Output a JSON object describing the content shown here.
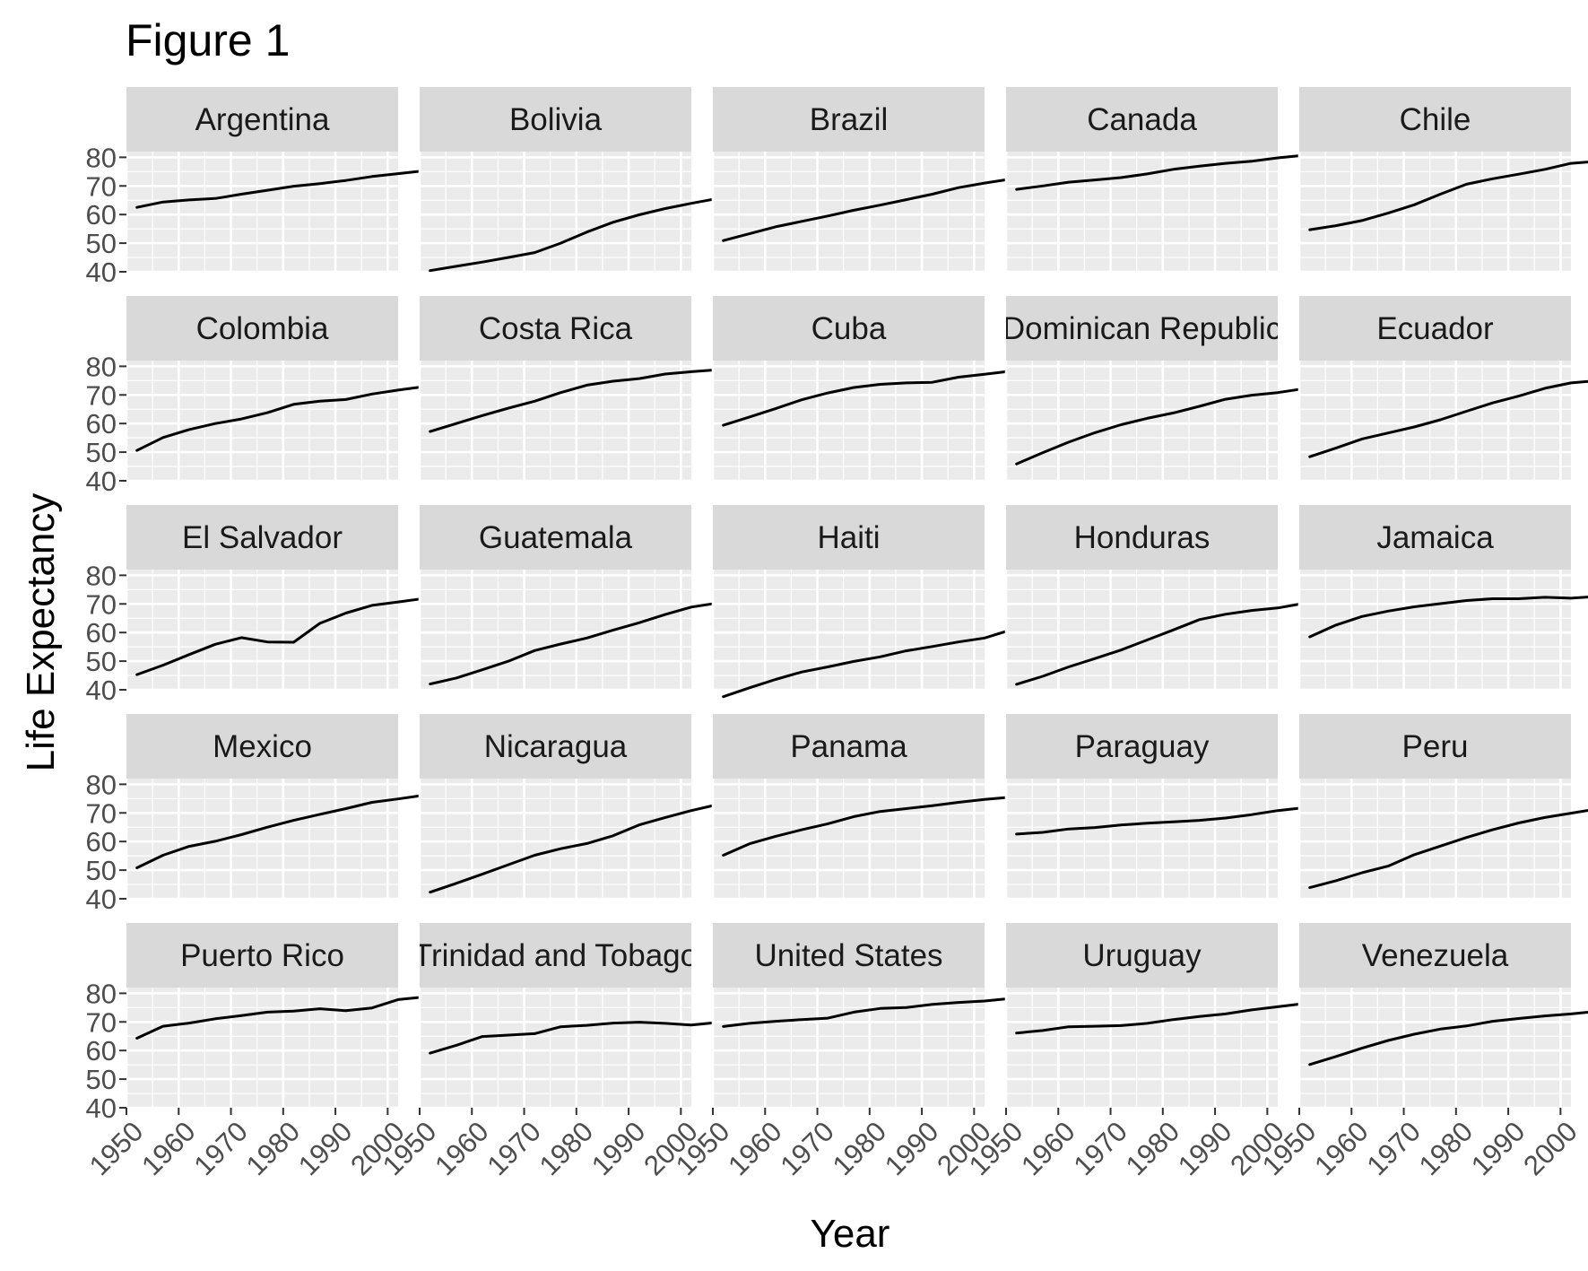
{
  "chart_data": {
    "type": "line",
    "title": "Figure 1",
    "xlabel": "Year",
    "ylabel": "Life Expectancy",
    "xlim": [
      1950,
      2002
    ],
    "ylim": [
      40,
      82
    ],
    "x_ticks": [
      1950,
      1960,
      1970,
      1980,
      1990,
      2000
    ],
    "x_tick_labels": [
      "1950",
      "1960",
      "1970",
      "1980",
      "1990",
      "2000"
    ],
    "y_ticks": [
      40,
      50,
      60,
      70,
      80
    ],
    "y_tick_labels": [
      "40",
      "50",
      "60",
      "70",
      "80"
    ],
    "grid": true,
    "layout": "facet grid 5 x 5",
    "x": [
      1952,
      1957,
      1962,
      1967,
      1972,
      1977,
      1982,
      1987,
      1992,
      1997,
      2002,
      2007
    ],
    "panels": [
      {
        "name": "Argentina",
        "values": [
          62.5,
          64.4,
          65.1,
          65.6,
          67.1,
          68.5,
          69.9,
          70.8,
          71.9,
          73.3,
          74.3,
          75.3
        ]
      },
      {
        "name": "Bolivia",
        "values": [
          40.4,
          41.9,
          43.4,
          45.0,
          46.7,
          50.0,
          53.9,
          57.3,
          59.9,
          62.1,
          63.9,
          65.6
        ]
      },
      {
        "name": "Brazil",
        "values": [
          50.9,
          53.3,
          55.7,
          57.6,
          59.5,
          61.5,
          63.3,
          65.2,
          67.1,
          69.4,
          71.0,
          72.4
        ]
      },
      {
        "name": "Canada",
        "values": [
          68.8,
          70.0,
          71.3,
          72.1,
          72.9,
          74.2,
          75.8,
          76.9,
          77.9,
          78.6,
          79.8,
          80.7
        ]
      },
      {
        "name": "Chile",
        "values": [
          54.7,
          56.1,
          57.9,
          60.5,
          63.4,
          67.1,
          70.6,
          72.5,
          74.1,
          75.8,
          77.9,
          78.6
        ]
      },
      {
        "name": "Colombia",
        "values": [
          50.6,
          55.1,
          57.9,
          60.0,
          61.6,
          63.8,
          66.7,
          67.8,
          68.4,
          70.3,
          71.7,
          72.9
        ]
      },
      {
        "name": "Costa Rica",
        "values": [
          57.2,
          60.0,
          62.8,
          65.4,
          67.8,
          70.8,
          73.4,
          74.8,
          75.7,
          77.3,
          78.1,
          78.8
        ]
      },
      {
        "name": "Cuba",
        "values": [
          59.4,
          62.3,
          65.2,
          68.3,
          70.7,
          72.6,
          73.7,
          74.2,
          74.4,
          76.2,
          77.2,
          78.3
        ]
      },
      {
        "name": "Dominican Republic",
        "values": [
          45.9,
          49.8,
          53.5,
          56.8,
          59.6,
          61.8,
          63.7,
          66.0,
          68.5,
          69.9,
          70.8,
          72.2
        ]
      },
      {
        "name": "Ecuador",
        "values": [
          48.4,
          51.4,
          54.6,
          56.7,
          58.8,
          61.3,
          64.3,
          67.2,
          69.6,
          72.3,
          74.2,
          75.0
        ]
      },
      {
        "name": "El Salvador",
        "values": [
          45.3,
          48.6,
          52.3,
          55.9,
          58.2,
          56.7,
          56.6,
          63.2,
          66.8,
          69.5,
          70.7,
          71.9
        ]
      },
      {
        "name": "Guatemala",
        "values": [
          42.0,
          44.1,
          47.0,
          50.0,
          53.7,
          56.0,
          58.1,
          60.8,
          63.4,
          66.3,
          68.9,
          70.3
        ]
      },
      {
        "name": "Haiti",
        "values": [
          37.6,
          40.7,
          43.6,
          46.2,
          48.0,
          49.9,
          51.5,
          53.6,
          55.1,
          56.7,
          58.1,
          60.9
        ]
      },
      {
        "name": "Honduras",
        "values": [
          41.9,
          44.7,
          48.0,
          50.9,
          53.9,
          57.4,
          60.9,
          64.5,
          66.4,
          67.7,
          68.6,
          70.2
        ]
      },
      {
        "name": "Jamaica",
        "values": [
          58.5,
          62.6,
          65.6,
          67.5,
          69.0,
          70.1,
          71.2,
          71.8,
          71.8,
          72.3,
          72.0,
          72.6
        ]
      },
      {
        "name": "Mexico",
        "values": [
          50.8,
          55.2,
          58.3,
          60.1,
          62.4,
          65.0,
          67.4,
          69.5,
          71.5,
          73.7,
          74.9,
          76.2
        ]
      },
      {
        "name": "Nicaragua",
        "values": [
          42.3,
          45.4,
          48.6,
          51.9,
          55.2,
          57.5,
          59.3,
          62.0,
          65.8,
          68.4,
          70.8,
          72.9
        ]
      },
      {
        "name": "Panama",
        "values": [
          55.2,
          59.2,
          61.8,
          64.1,
          66.2,
          68.7,
          70.5,
          71.5,
          72.5,
          73.7,
          74.7,
          75.5
        ]
      },
      {
        "name": "Paraguay",
        "values": [
          62.6,
          63.2,
          64.4,
          64.9,
          65.8,
          66.4,
          66.9,
          67.4,
          68.2,
          69.4,
          70.8,
          71.8
        ]
      },
      {
        "name": "Peru",
        "values": [
          43.9,
          46.3,
          49.1,
          51.4,
          55.4,
          58.4,
          61.4,
          64.1,
          66.5,
          68.4,
          69.9,
          71.4
        ]
      },
      {
        "name": "Puerto Rico",
        "values": [
          64.3,
          68.5,
          69.6,
          71.1,
          72.2,
          73.4,
          73.8,
          74.6,
          73.9,
          74.9,
          77.8,
          78.7
        ]
      },
      {
        "name": "Trinidad and Tobago",
        "values": [
          59.1,
          61.8,
          64.9,
          65.4,
          65.9,
          68.3,
          68.8,
          69.6,
          69.9,
          69.5,
          68.9,
          69.8
        ]
      },
      {
        "name": "United States",
        "values": [
          68.4,
          69.5,
          70.2,
          70.8,
          71.3,
          73.4,
          74.7,
          75.0,
          76.1,
          76.8,
          77.3,
          78.2
        ]
      },
      {
        "name": "Uruguay",
        "values": [
          66.1,
          67.0,
          68.3,
          68.5,
          68.7,
          69.5,
          70.8,
          71.9,
          72.8,
          74.2,
          75.3,
          76.4
        ]
      },
      {
        "name": "Venezuela",
        "values": [
          55.1,
          57.9,
          60.8,
          63.5,
          65.7,
          67.5,
          68.6,
          70.2,
          71.2,
          72.1,
          72.8,
          73.7
        ]
      }
    ]
  }
}
